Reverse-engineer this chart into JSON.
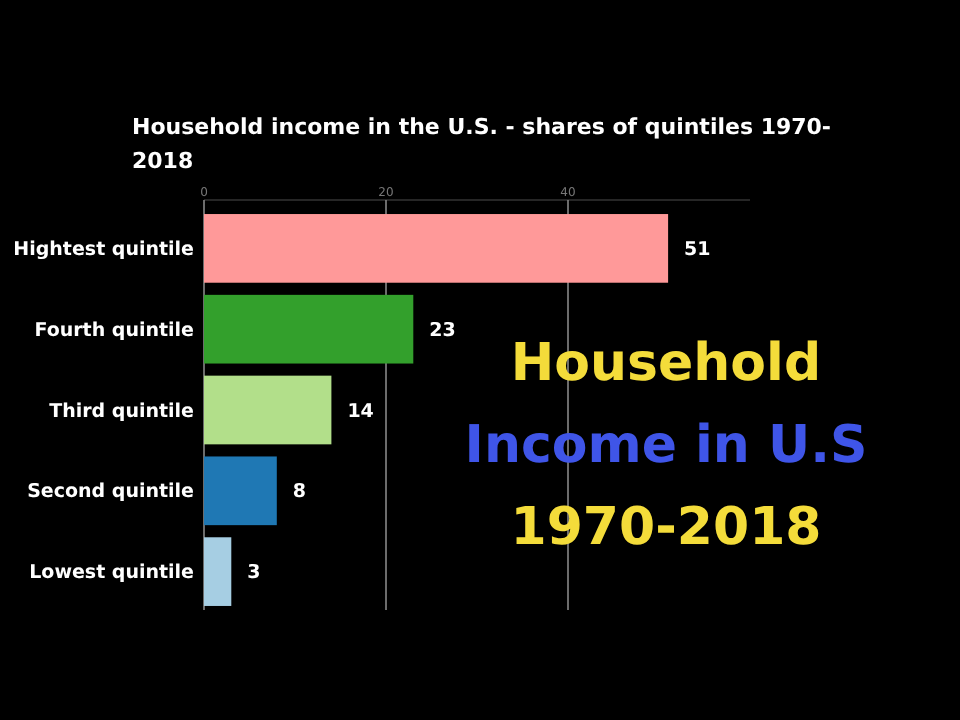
{
  "chart_data": {
    "type": "bar",
    "orientation": "horizontal",
    "title": "Household income in the U.S. - shares of quintiles 1970-2018",
    "categories": [
      "Hightest quintile",
      "Fourth quintile",
      "Third quintile",
      "Second quintile",
      "Lowest quintile"
    ],
    "values": [
      51,
      23,
      14,
      8,
      3
    ],
    "colors": [
      "#ff9999",
      "#33a02c",
      "#b2df8a",
      "#1f78b4",
      "#a6cee3"
    ],
    "xlim": [
      0,
      60
    ],
    "xticks": [
      0,
      20,
      40
    ],
    "grid": "x",
    "data_labels": true,
    "annotations": [
      "Household",
      "Income in U.S",
      "1970-2018"
    ]
  }
}
